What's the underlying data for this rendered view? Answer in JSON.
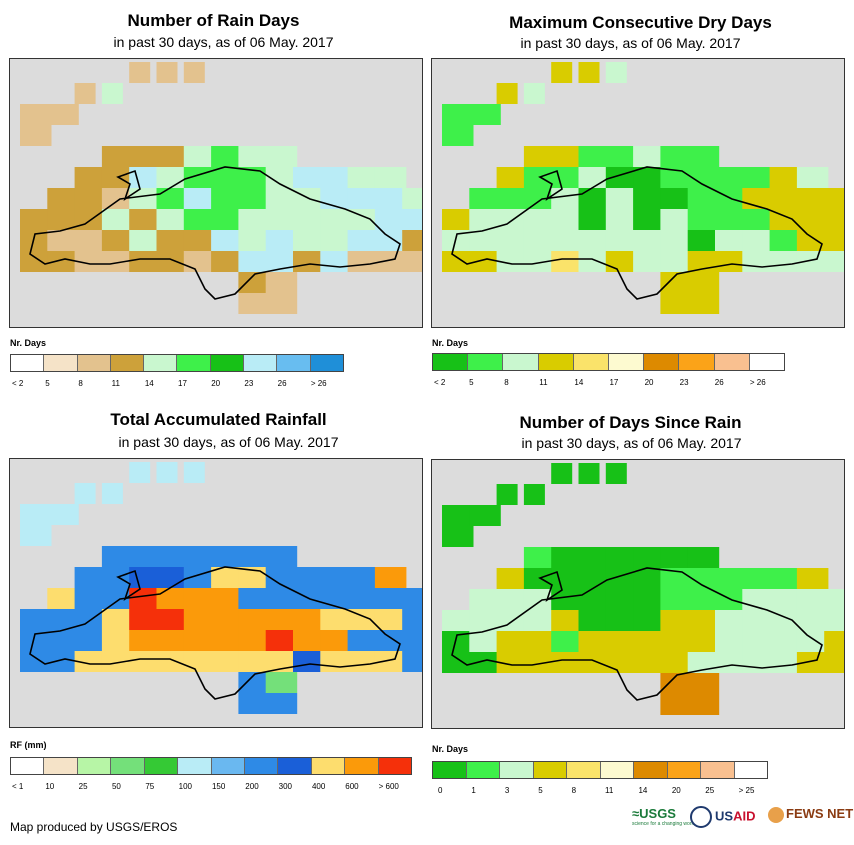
{
  "panels": [
    {
      "id": "rain-days",
      "title": "Number of Rain Days",
      "subtitle": "in past 30 days, as of 06 May. 2017",
      "legend_title": "Nr. Days",
      "legend_colors": [
        "#ffffff",
        "#f5e3c8",
        "#e3c28e",
        "#cda13a",
        "#c9f7cf",
        "#3ef04a",
        "#17c117",
        "#b9ecf6",
        "#68bdf0",
        "#1f8fd8"
      ],
      "legend_ticks": [
        "< 2",
        "5",
        "8",
        "11",
        "14",
        "17",
        "20",
        "23",
        "26",
        "> 26"
      ],
      "grid": [
        "....ttt.........",
        "..tg...........",
        "tt.............",
        "t...............",
        "...bbbgGgg......",
        "..bbLgGGGgLLgg..",
        ".bbtgGLGGggLLLgg",
        "bbbgbgGGgggggLLL",
        "bttbgbbLgLggLLbt",
        "bbttbbtbLLbLtttb",
        "........bt......",
        "........tt......"
      ]
    },
    {
      "id": "max-dry-days",
      "title": "Maximum Consecutive Dry Days",
      "subtitle": "in past 30 days, as of 06 May. 2017",
      "legend_title": "Nr. Days",
      "legend_colors": [
        "#17c117",
        "#3ef04a",
        "#c9f7cf",
        "#d9cc00",
        "#fae36a",
        "#fdfad0",
        "#dd8a00",
        "#fba318",
        "#f9c090",
        "#ffffff"
      ],
      "legend_ticks": [
        "< 2",
        "5",
        "8",
        "11",
        "14",
        "17",
        "20",
        "23",
        "26",
        "> 26"
      ],
      "grid": [
        "....yyg.........",
        "..yg...........",
        "LL..............",
        "L...............",
        "...yyLLgLL......",
        "..yLLgGGLLLLyg..",
        ".LLLgGgGGLLyyyyy",
        "yggggGgGgLLLyyyy",
        "gggggggggGggLyyg",
        "yyggbgyggyyggggy",
        "........yy......",
        "........yy......"
      ]
    },
    {
      "id": "total-rainfall",
      "title": "Total Accumulated Rainfall",
      "subtitle": "in past 30 days, as of 06 May. 2017",
      "legend_title": "RF (mm)",
      "legend_colors": [
        "#ffffff",
        "#f5e3c8",
        "#b7f5a6",
        "#74e07a",
        "#35c935",
        "#b9ecf6",
        "#6ab8f0",
        "#2e8ae6",
        "#1a5fd8",
        "#fddd6e",
        "#fb9a0a",
        "#f5300a"
      ],
      "legend_ticks": [
        "< 1",
        "10",
        "25",
        "50",
        "75",
        "100",
        "150",
        "200",
        "300",
        "400",
        "600",
        "> 600"
      ],
      "grid": [
        "....LLL.........",
        "..LL...........",
        "LL..............",
        "L...............",
        "...BBBBBBB......",
        "..BBbbBYYBBBBo..",
        ".yBBRoooBBBBBBB.",
        "BBBYRRoooooYYYB.",
        "BBByooooorooBBBB",
        "BByyyyyYYYbyyyBB",
        "........Bg......",
        "........BB......"
      ]
    },
    {
      "id": "days-since-rain",
      "title": "Number of Days Since Rain",
      "subtitle": "in past 30 days, as of 06 May. 2017",
      "legend_title": "Nr. Days",
      "legend_colors": [
        "#17c117",
        "#3ef04a",
        "#c9f7cf",
        "#d9cc00",
        "#fae36a",
        "#fdfad0",
        "#dd8a00",
        "#fba318",
        "#f9c090",
        "#ffffff"
      ],
      "legend_ticks": [
        "0",
        "1",
        "3",
        "5",
        "8",
        "11",
        "14",
        "20",
        "25",
        "> 25"
      ],
      "grid": [
        "....GGG.........",
        "..GG...........",
        "GG..............",
        "G...............",
        "...gGGGGGG......",
        "..yGGGGGgggggy..",
        ".LLLGGGGgggLLLLy",
        "LLLLyGGGyyLLLLLy",
        "GLyygyyyyyLLLLyy",
        "GGyyyyyyyLLLLyyy",
        "........oo......",
        "........oo......"
      ]
    }
  ],
  "credit": "Map produced by USGS/EROS",
  "logos": {
    "usgs": "≈USGS",
    "usgs_tagline": "science for a changing world",
    "usaid_prefix": "US",
    "usaid_suffix": "AID",
    "fews": "FEWS NET"
  }
}
